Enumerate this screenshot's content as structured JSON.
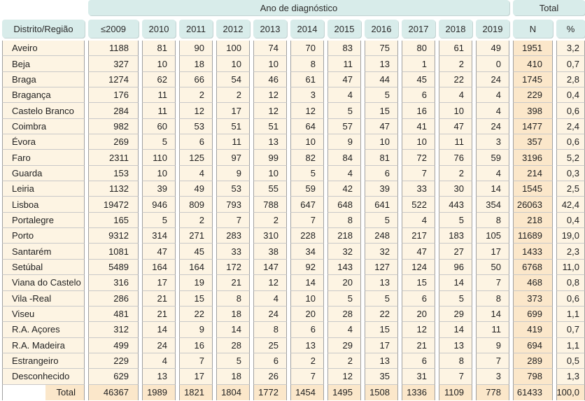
{
  "colors": {
    "page_bg": "#ffffff",
    "teal": "#d8ecea",
    "peach": "#fdf4e3",
    "accent": "#fbe7ca",
    "vline": "#a0a0a0",
    "hline": "#c9c9c9",
    "text": "#1f1f1f"
  },
  "chart_data": {
    "type": "table",
    "group_headers": {
      "years_label": "Ano de diagnóstico",
      "total_label": "Total"
    },
    "columns": [
      "Distrito/Região",
      "≤2009",
      "2010",
      "2011",
      "2012",
      "2013",
      "2014",
      "2015",
      "2016",
      "2017",
      "2018",
      "2019",
      "N",
      "%"
    ],
    "rows": [
      [
        "Aveiro",
        "1188",
        "81",
        "90",
        "100",
        "74",
        "70",
        "83",
        "75",
        "80",
        "61",
        "49",
        "1951",
        "3,2"
      ],
      [
        "Beja",
        "327",
        "10",
        "18",
        "10",
        "10",
        "8",
        "11",
        "13",
        "1",
        "2",
        "0",
        "410",
        "0,7"
      ],
      [
        "Braga",
        "1274",
        "62",
        "66",
        "54",
        "46",
        "61",
        "47",
        "44",
        "45",
        "22",
        "24",
        "1745",
        "2,8"
      ],
      [
        "Bragança",
        "176",
        "11",
        "2",
        "2",
        "12",
        "3",
        "4",
        "5",
        "6",
        "4",
        "4",
        "229",
        "0,4"
      ],
      [
        "Castelo Branco",
        "284",
        "11",
        "12",
        "17",
        "12",
        "12",
        "5",
        "15",
        "16",
        "10",
        "4",
        "398",
        "0,6"
      ],
      [
        "Coimbra",
        "982",
        "60",
        "53",
        "51",
        "51",
        "64",
        "57",
        "47",
        "41",
        "47",
        "24",
        "1477",
        "2,4"
      ],
      [
        "Évora",
        "269",
        "5",
        "6",
        "11",
        "13",
        "10",
        "9",
        "10",
        "10",
        "11",
        "3",
        "357",
        "0,6"
      ],
      [
        "Faro",
        "2311",
        "110",
        "125",
        "97",
        "99",
        "82",
        "84",
        "81",
        "72",
        "76",
        "59",
        "3196",
        "5,2"
      ],
      [
        "Guarda",
        "153",
        "10",
        "4",
        "9",
        "10",
        "5",
        "4",
        "6",
        "7",
        "2",
        "4",
        "214",
        "0,3"
      ],
      [
        "Leiria",
        "1132",
        "39",
        "49",
        "53",
        "55",
        "59",
        "42",
        "39",
        "33",
        "30",
        "14",
        "1545",
        "2,5"
      ],
      [
        "Lisboa",
        "19472",
        "946",
        "809",
        "793",
        "788",
        "647",
        "648",
        "641",
        "522",
        "443",
        "354",
        "26063",
        "42,4"
      ],
      [
        "Portalegre",
        "165",
        "5",
        "2",
        "7",
        "2",
        "7",
        "8",
        "5",
        "4",
        "5",
        "8",
        "218",
        "0,4"
      ],
      [
        "Porto",
        "9312",
        "314",
        "271",
        "283",
        "310",
        "228",
        "218",
        "248",
        "217",
        "183",
        "105",
        "11689",
        "19,0"
      ],
      [
        "Santarém",
        "1081",
        "47",
        "45",
        "33",
        "38",
        "34",
        "32",
        "32",
        "47",
        "27",
        "17",
        "1433",
        "2,3"
      ],
      [
        "Setúbal",
        "5489",
        "164",
        "164",
        "172",
        "147",
        "92",
        "143",
        "127",
        "124",
        "96",
        "50",
        "6768",
        "11,0"
      ],
      [
        "Viana do Castelo",
        "316",
        "17",
        "19",
        "21",
        "12",
        "14",
        "20",
        "13",
        "15",
        "14",
        "7",
        "468",
        "0,8"
      ],
      [
        "Vila -Real",
        "286",
        "21",
        "15",
        "8",
        "4",
        "10",
        "5",
        "5",
        "6",
        "5",
        "8",
        "373",
        "0,6"
      ],
      [
        "Viseu",
        "481",
        "21",
        "22",
        "18",
        "24",
        "20",
        "28",
        "22",
        "20",
        "29",
        "14",
        "699",
        "1,1"
      ],
      [
        "R.A. Açores",
        "312",
        "14",
        "9",
        "14",
        "8",
        "6",
        "4",
        "15",
        "12",
        "14",
        "11",
        "419",
        "0,7"
      ],
      [
        "R.A. Madeira",
        "499",
        "24",
        "16",
        "28",
        "25",
        "13",
        "29",
        "17",
        "21",
        "13",
        "9",
        "694",
        "1,1"
      ],
      [
        "Estrangeiro",
        "229",
        "4",
        "7",
        "5",
        "6",
        "2",
        "2",
        "13",
        "6",
        "8",
        "7",
        "289",
        "0,5"
      ],
      [
        "Desconhecido",
        "629",
        "13",
        "17",
        "18",
        "26",
        "7",
        "12",
        "35",
        "31",
        "7",
        "3",
        "798",
        "1,3"
      ]
    ],
    "total_row": [
      "Total",
      "46367",
      "1989",
      "1821",
      "1804",
      "1772",
      "1454",
      "1495",
      "1508",
      "1336",
      "1109",
      "778",
      "61433",
      "100,0"
    ]
  }
}
